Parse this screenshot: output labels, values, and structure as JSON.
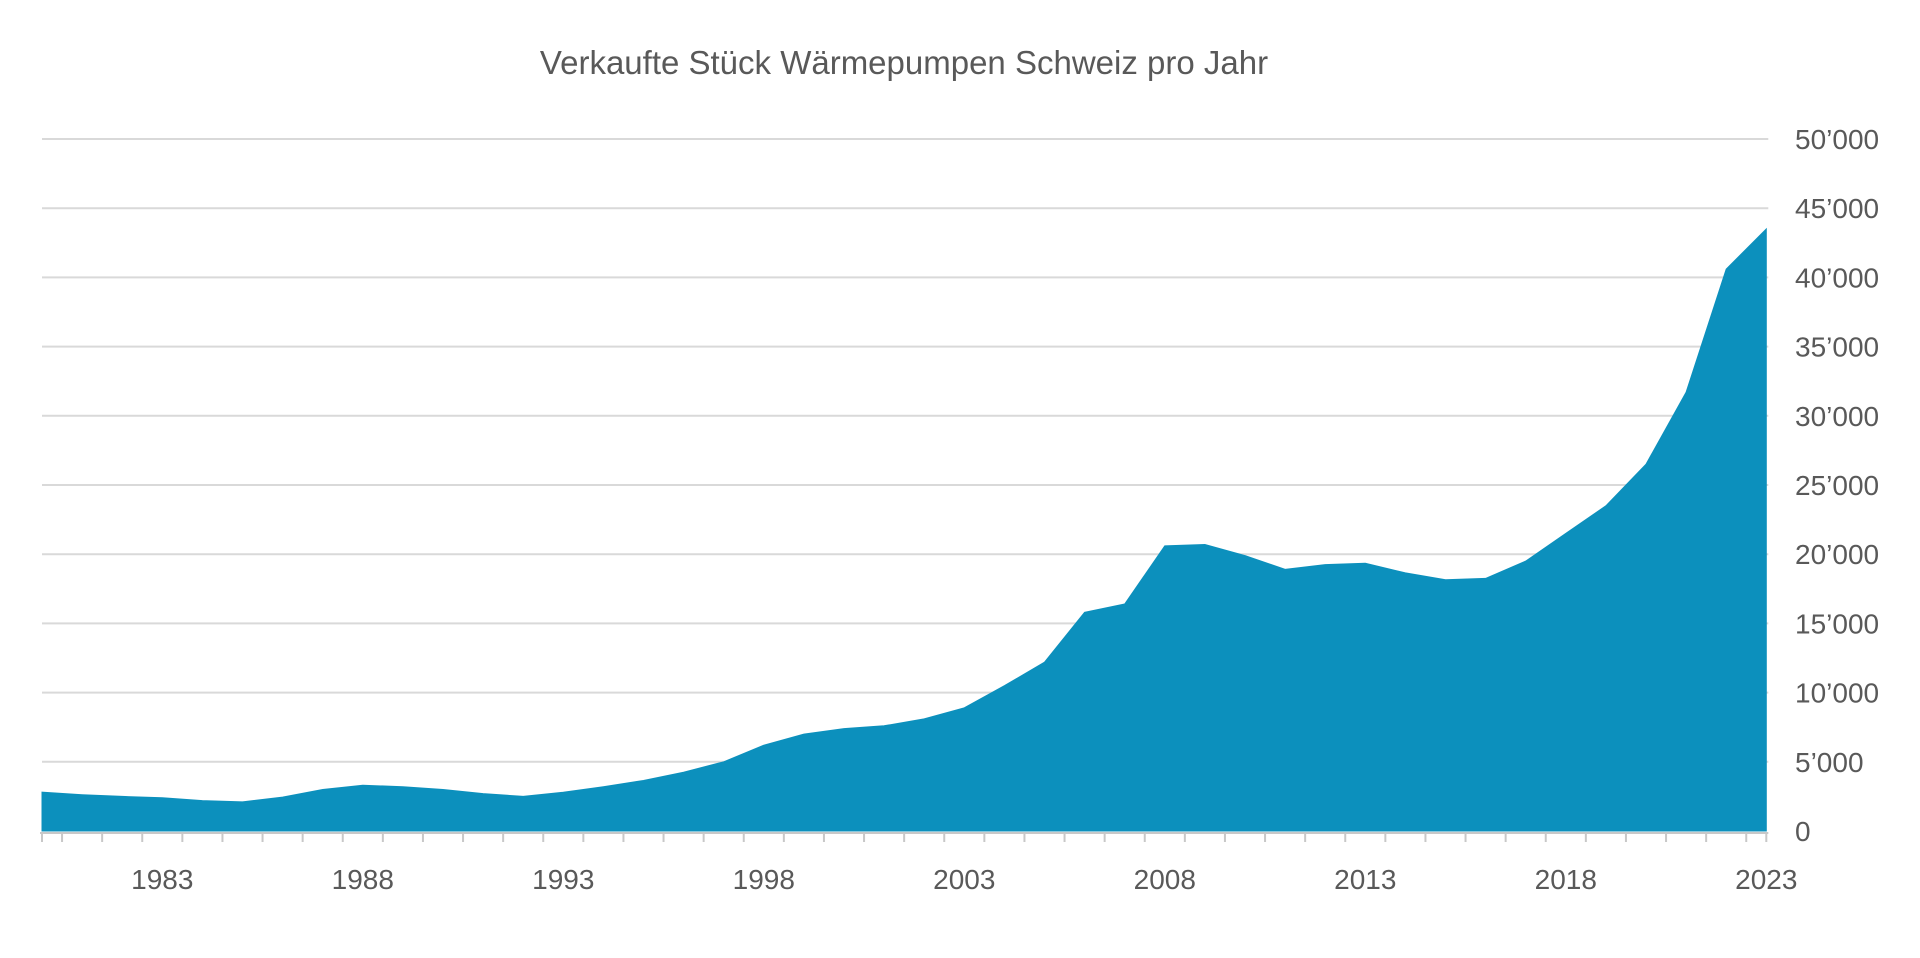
{
  "title": "Verkaufte Stück Wärmepumpen Schweiz pro Jahr",
  "colors": {
    "area": "#0C90BD",
    "gridline": "#D9D9D9",
    "axis_line": "#C8C8C8",
    "tick": "#C8C8C8",
    "axis_text": "#595959",
    "title_text": "#595959",
    "background": "#FFFFFF"
  },
  "chart_data": {
    "type": "area",
    "title": "Verkaufte Stück Wärmepumpen Schweiz pro Jahr",
    "xlabel": "",
    "ylabel": "",
    "x": [
      1980,
      1981,
      1982,
      1983,
      1984,
      1985,
      1986,
      1987,
      1988,
      1989,
      1990,
      1991,
      1992,
      1993,
      1994,
      1995,
      1996,
      1997,
      1998,
      1999,
      2000,
      2001,
      2002,
      2003,
      2004,
      2005,
      2006,
      2007,
      2008,
      2009,
      2010,
      2011,
      2012,
      2013,
      2014,
      2015,
      2016,
      2017,
      2018,
      2019,
      2020,
      2021,
      2022,
      2023
    ],
    "values": [
      2800,
      2620,
      2500,
      2400,
      2200,
      2100,
      2450,
      3000,
      3300,
      3200,
      3000,
      2700,
      2500,
      2800,
      3200,
      3650,
      4250,
      5000,
      6200,
      7000,
      7400,
      7600,
      8100,
      8900,
      10500,
      12200,
      15800,
      16400,
      20600,
      20700,
      19900,
      18900,
      19250,
      19350,
      18650,
      18150,
      18250,
      19500,
      21500,
      23500,
      26500,
      31700,
      40600,
      43500
    ],
    "xlim": [
      1980,
      2023
    ],
    "ylim": [
      0,
      50000
    ],
    "x_tick_labels": [
      "1983",
      "1988",
      "1993",
      "1998",
      "2003",
      "2008",
      "2013",
      "2018",
      "2023"
    ],
    "x_tick_years": [
      1983,
      1988,
      1993,
      1998,
      2003,
      2008,
      2013,
      2018,
      2023
    ],
    "y_tick_values": [
      0,
      5000,
      10000,
      15000,
      20000,
      25000,
      30000,
      35000,
      40000,
      45000,
      50000
    ],
    "y_tick_labels": [
      "0",
      "5’000",
      "10’000",
      "15’000",
      "20’000",
      "25’000",
      "30’000",
      "35’000",
      "40’000",
      "45’000",
      "50’000"
    ],
    "y_tick_interval": 5000,
    "thousands_separator": "’",
    "grid": true,
    "gridlines": "horizontal",
    "y_axis_side": "right",
    "legend": "none"
  }
}
